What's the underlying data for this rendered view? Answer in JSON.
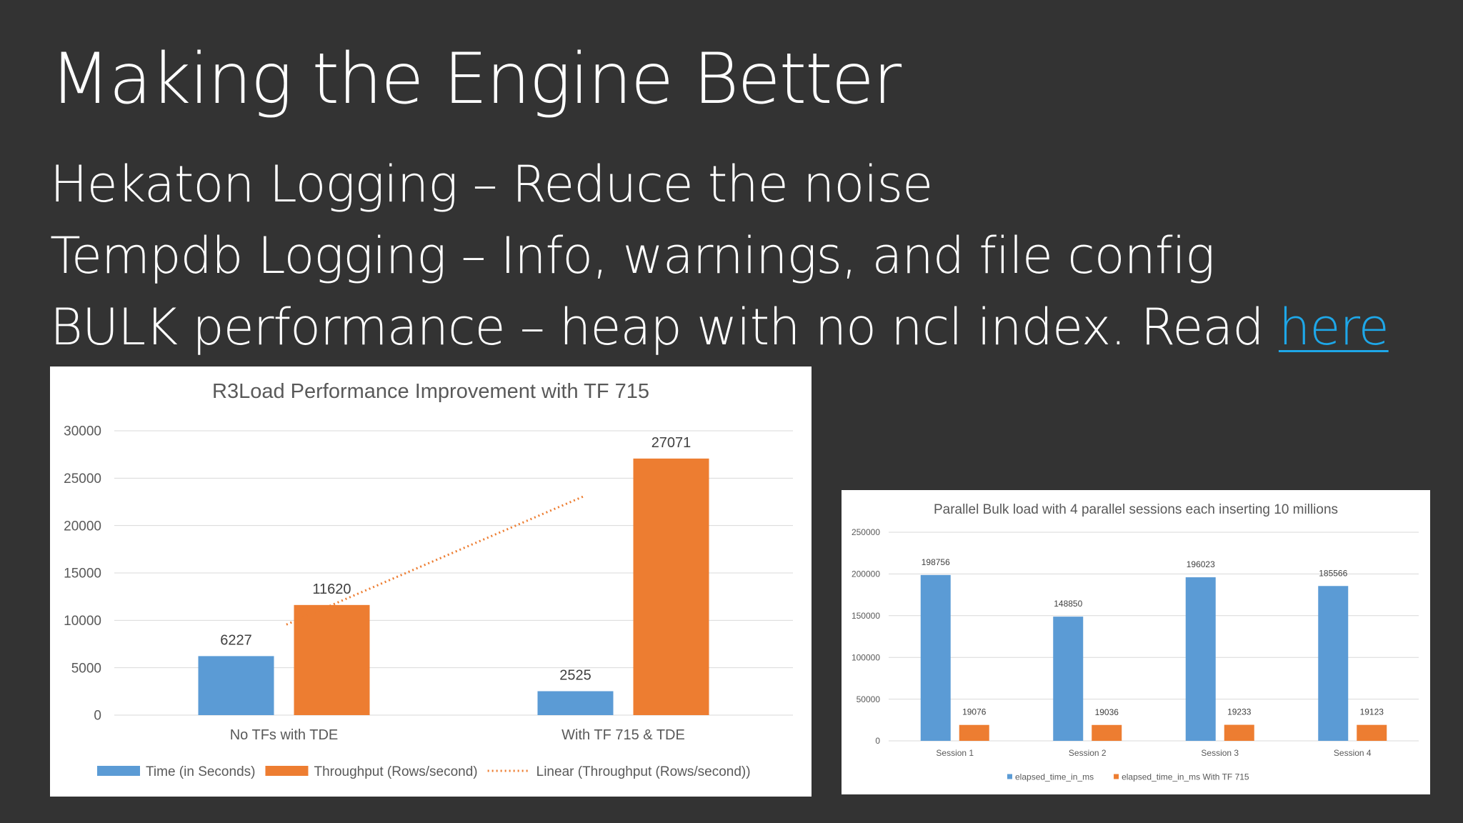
{
  "slide": {
    "title": "Making the Engine Better",
    "bullets": [
      {
        "text": "Hekaton Logging – Reduce the noise"
      },
      {
        "text": "Tempdb Logging – Info, warnings, and file config"
      },
      {
        "text": "BULK performance – heap with no ncl index. Read ",
        "link": "here"
      }
    ],
    "colors": {
      "background": "#333333",
      "text": "#ffffff",
      "link": "#1ea7e8"
    }
  },
  "chart_data": [
    {
      "type": "bar",
      "title": "R3Load Performance Improvement with TF 715",
      "categories": [
        "No TFs with TDE",
        "With TF 715 & TDE"
      ],
      "series": [
        {
          "name": "Time (in Seconds)",
          "values": [
            6227,
            2525
          ],
          "color": "#5b9bd5"
        },
        {
          "name": "Throughput (Rows/second)",
          "values": [
            11620,
            27071
          ],
          "color": "#ed7d31"
        }
      ],
      "trendline": {
        "name": "Linear (Throughput (Rows/second))",
        "type": "linear",
        "series": "Throughput (Rows/second)",
        "color": "#ed7d31"
      },
      "yticks": [
        0,
        5000,
        10000,
        15000,
        20000,
        25000,
        30000
      ],
      "ylim": [
        0,
        30000
      ],
      "xlabel": "",
      "ylabel": "",
      "data_labels": true,
      "grid": true,
      "legend": "bottom"
    },
    {
      "type": "bar",
      "title": "Parallel Bulk load with 4 parallel sessions each inserting 10 millions",
      "categories": [
        "Session 1",
        "Session 2",
        "Session 3",
        "Session 4"
      ],
      "series": [
        {
          "name": "elapsed_time_in_ms",
          "values": [
            198756,
            148850,
            196023,
            185566
          ],
          "color": "#5b9bd5"
        },
        {
          "name": "elapsed_time_in_ms With TF 715",
          "values": [
            19076,
            19036,
            19233,
            19123
          ],
          "color": "#ed7d31"
        }
      ],
      "yticks": [
        0,
        50000,
        100000,
        150000,
        200000,
        250000
      ],
      "ylim": [
        0,
        250000
      ],
      "xlabel": "",
      "ylabel": "",
      "data_labels": true,
      "grid": true,
      "legend": "bottom"
    }
  ]
}
